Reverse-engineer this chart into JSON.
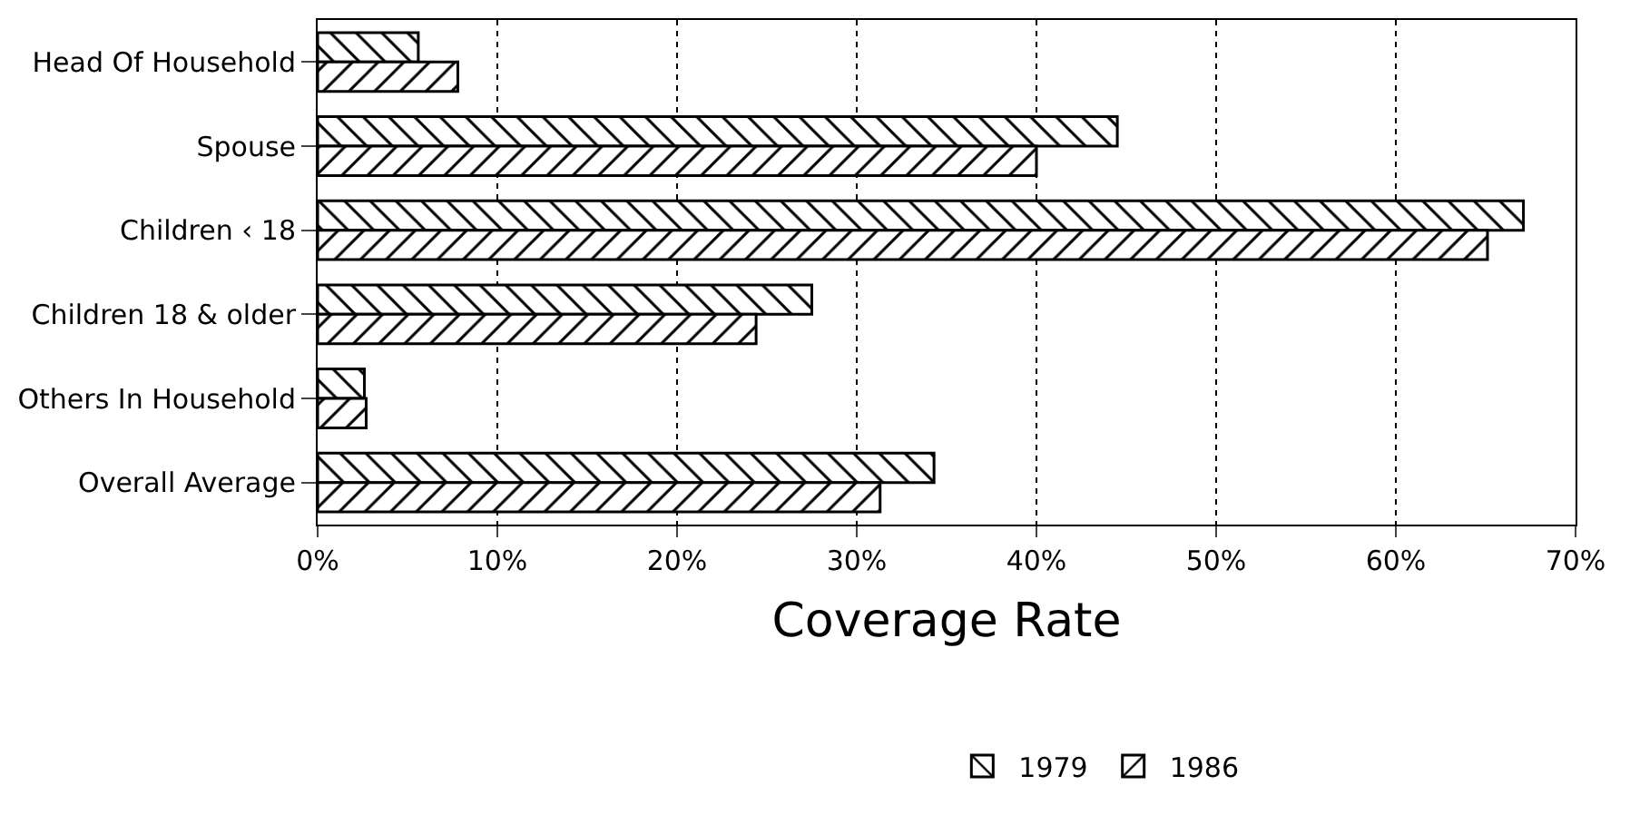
{
  "chart_data": {
    "type": "bar",
    "orientation": "horizontal",
    "xlabel": "Coverage Rate",
    "categories": [
      "Head Of Household",
      "Spouse",
      "Children ‹ 18",
      "Children 18 & older",
      "Others In Household",
      "Overall Average"
    ],
    "series": [
      {
        "name": "1979",
        "color": "#000000",
        "values": [
          5.6,
          44.5,
          67.1,
          27.5,
          2.6,
          34.3
        ]
      },
      {
        "name": "1986",
        "color": "#000000",
        "values": [
          7.8,
          40.0,
          65.1,
          24.4,
          2.7,
          31.3
        ]
      }
    ],
    "xlim": [
      0,
      70
    ],
    "xticks": [
      {
        "value": 0,
        "label": "0%"
      },
      {
        "value": 10,
        "label": "10%"
      },
      {
        "value": 20,
        "label": "20%"
      },
      {
        "value": 30,
        "label": "30%"
      },
      {
        "value": 40,
        "label": "40%"
      },
      {
        "value": 50,
        "label": "50%"
      },
      {
        "value": 60,
        "label": "60%"
      },
      {
        "value": 70,
        "label": "70%"
      }
    ],
    "grid": "x",
    "legend": "bottom"
  }
}
